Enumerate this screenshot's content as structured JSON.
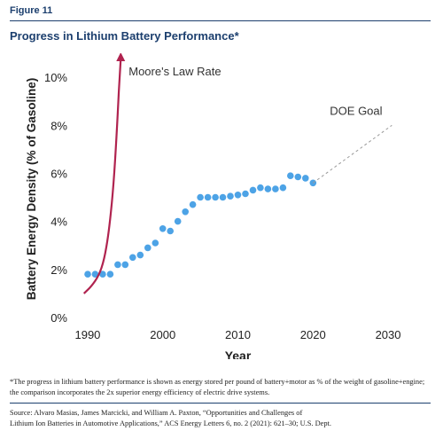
{
  "figure_label": "Figure 11",
  "title": "Progress in Lithium Battery Performance*",
  "footnote": "*The progress in lithium battery performance is shown as energy stored per pound of battery+motor as % of the weight of gasoline+engine; the comparison incorporates the 2x superior energy efficiency of electric drive systems.",
  "source_line1": "Source: Alvaro Masias, James Marcicki, and William A. Paxton, “Opportunities and Challenges of",
  "source_line2": "Lithium Ion Batteries in Automotive Applications,” ACS Energy Letters 6, no. 2 (2021): 621–30; U.S. Dept.",
  "colors": {
    "title": "#1c3f6e",
    "points": "#4da3e6",
    "moores": "#b0234f",
    "goal": "#999999",
    "text": "#222222"
  },
  "chart_data": {
    "type": "scatter",
    "xlabel": "Year",
    "ylabel": "Battery Energy Density (% of Gasoline)",
    "xlim": [
      1988,
      2032
    ],
    "ylim": [
      0,
      11
    ],
    "x_ticks": [
      1990,
      2000,
      2010,
      2020,
      2030
    ],
    "x_tick_labels": [
      "1990",
      "2000",
      "2010",
      "2020",
      "2030"
    ],
    "y_ticks": [
      0,
      2,
      4,
      6,
      8,
      10
    ],
    "y_tick_labels": [
      "0%",
      "2%",
      "4%",
      "6%",
      "8%",
      "10%"
    ],
    "grid": false,
    "series": [
      {
        "kind": "points",
        "x": [
          1990,
          1991,
          1992,
          1993,
          1994,
          1995,
          1996,
          1997,
          1998,
          1999,
          2000,
          2001,
          2002,
          2003,
          2004,
          2005,
          2006,
          2007,
          2008,
          2009,
          2010,
          2011,
          2012,
          2013,
          2014,
          2015,
          2016,
          2017,
          2018,
          2019,
          2020
        ],
        "y": [
          1.8,
          1.8,
          1.8,
          1.8,
          2.2,
          2.2,
          2.5,
          2.6,
          2.9,
          3.1,
          3.7,
          3.6,
          4.0,
          4.4,
          4.7,
          5.0,
          5.0,
          5.0,
          5.0,
          5.05,
          5.1,
          5.15,
          5.3,
          5.4,
          5.35,
          5.35,
          5.4,
          5.9,
          5.85,
          5.8,
          5.6
        ]
      },
      {
        "name": "Moore's Law Rate",
        "kind": "curve",
        "x": [
          1989.5,
          1990.5,
          1991.5,
          1992.2,
          1992.8,
          1993.4,
          1993.9,
          1994.4
        ],
        "y": [
          1.0,
          1.3,
          1.75,
          2.4,
          3.5,
          5.3,
          7.8,
          11.0
        ]
      },
      {
        "name": "DOE Goal",
        "kind": "dashed",
        "x": [
          2020,
          2030.5
        ],
        "y": [
          5.6,
          8.0
        ]
      }
    ]
  }
}
